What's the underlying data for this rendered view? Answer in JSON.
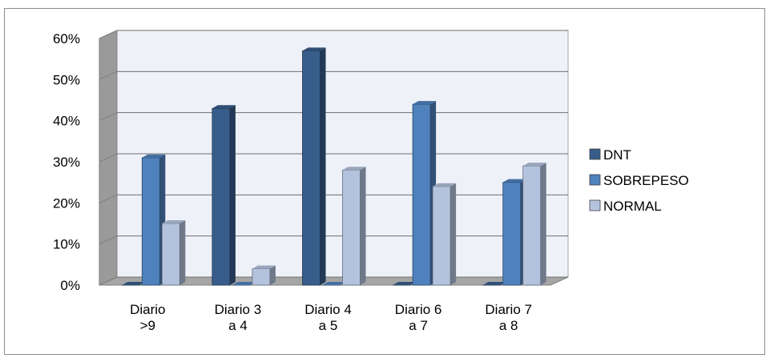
{
  "chart_data": {
    "type": "bar",
    "categories": [
      [
        "Diario",
        ">9"
      ],
      [
        "Diario 3",
        "a 4"
      ],
      [
        "Diario 4",
        "a 5"
      ],
      [
        "Diario 6",
        "a 7"
      ],
      [
        "Diario 7",
        "a 8"
      ]
    ],
    "series": [
      {
        "name": "DNT",
        "values": [
          0,
          43,
          57,
          0,
          0
        ],
        "color": "#385d8a"
      },
      {
        "name": "SOBREPESO",
        "values": [
          31,
          0,
          0,
          44,
          25
        ],
        "color": "#4f81bd"
      },
      {
        "name": "NORMAL",
        "values": [
          15,
          4,
          28,
          24,
          29
        ],
        "color": "#b4c3dd"
      }
    ],
    "yticks": [
      "0%",
      "10%",
      "20%",
      "30%",
      "40%",
      "50%",
      "60%"
    ],
    "ylim": [
      0,
      60
    ],
    "grid": true,
    "legend_position": "right",
    "title": "",
    "xlabel": "",
    "ylabel": ""
  }
}
